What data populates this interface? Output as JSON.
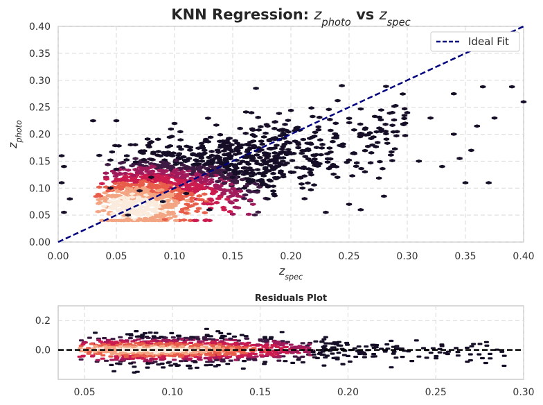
{
  "chart_data": [
    {
      "type": "scatter",
      "style": "hexbin",
      "title": "KNN Regression: $z_{photo}$ vs $z_{spec}$",
      "xlabel": "$z_{spec}$",
      "ylabel": "$z_{photo}$",
      "xlim": [
        0.0,
        0.4
      ],
      "ylim": [
        0.0,
        0.4
      ],
      "xticks": [
        "0.00",
        "0.05",
        "0.10",
        "0.15",
        "0.20",
        "0.25",
        "0.30",
        "0.35",
        "0.40"
      ],
      "yticks": [
        "0.00",
        "0.05",
        "0.10",
        "0.15",
        "0.20",
        "0.25",
        "0.30",
        "0.35",
        "0.40"
      ],
      "grid": true,
      "legend_position": "top-right",
      "series": [
        {
          "name": "Ideal Fit",
          "type": "line",
          "style": "dashed",
          "color": "#00007f",
          "x": [
            0.0,
            0.4
          ],
          "y": [
            0.0,
            0.4
          ]
        }
      ],
      "density_peak": {
        "x": 0.065,
        "y": 0.065
      },
      "density_colors": [
        "#150e26",
        "#3d1a42",
        "#a11a5b",
        "#cb1b4f",
        "#e85c4a",
        "#f3a583",
        "#faebdd"
      ],
      "points": [
        [
          0.17,
          0.285
        ],
        [
          0.365,
          0.288
        ],
        [
          0.39,
          0.288
        ],
        [
          0.4,
          0.26
        ],
        [
          0.34,
          0.275
        ],
        [
          0.03,
          0.225
        ],
        [
          0.18,
          0.215
        ],
        [
          0.05,
          0.225
        ],
        [
          0.1,
          0.22
        ],
        [
          0.29,
          0.253
        ],
        [
          0.003,
          0.16
        ],
        [
          0.005,
          0.14
        ],
        [
          0.003,
          0.11
        ],
        [
          0.01,
          0.08
        ],
        [
          0.005,
          0.055
        ],
        [
          0.37,
          0.11
        ],
        [
          0.35,
          0.11
        ],
        [
          0.34,
          0.2
        ],
        [
          0.32,
          0.23
        ],
        [
          0.3,
          0.24
        ],
        [
          0.28,
          0.085
        ],
        [
          0.26,
          0.06
        ],
        [
          0.25,
          0.07
        ],
        [
          0.23,
          0.055
        ],
        [
          0.31,
          0.15
        ],
        [
          0.33,
          0.14
        ],
        [
          0.355,
          0.17
        ],
        [
          0.375,
          0.23
        ],
        [
          0.36,
          0.215
        ],
        [
          0.345,
          0.155
        ],
        [
          0.045,
          0.1
        ],
        [
          0.05,
          0.135
        ],
        [
          0.06,
          0.05
        ],
        [
          0.07,
          0.095
        ],
        [
          0.08,
          0.12
        ],
        [
          0.09,
          0.075
        ],
        [
          0.11,
          0.09
        ],
        [
          0.13,
          0.06
        ],
        [
          0.15,
          0.12
        ],
        [
          0.17,
          0.15
        ],
        [
          0.2,
          0.13
        ],
        [
          0.22,
          0.16
        ],
        [
          0.24,
          0.12
        ],
        [
          0.21,
          0.1
        ],
        [
          0.19,
          0.19
        ],
        [
          0.14,
          0.18
        ],
        [
          0.12,
          0.16
        ],
        [
          0.16,
          0.1
        ],
        [
          0.18,
          0.08
        ],
        [
          0.27,
          0.18
        ]
      ]
    },
    {
      "type": "scatter",
      "style": "hexbin",
      "title": "Residuals Plot",
      "xlim": [
        0.035,
        0.3
      ],
      "ylim": [
        -0.2,
        0.3
      ],
      "xticks": [
        "0.05",
        "0.10",
        "0.15",
        "0.20",
        "0.25",
        "0.30"
      ],
      "yticks": [
        "0.2",
        "0.0"
      ],
      "grid": true,
      "reference_line": {
        "y": 0.0,
        "style": "dashed",
        "color": "#000000"
      },
      "density_peak": {
        "x": 0.09,
        "y": 0.0
      }
    }
  ]
}
